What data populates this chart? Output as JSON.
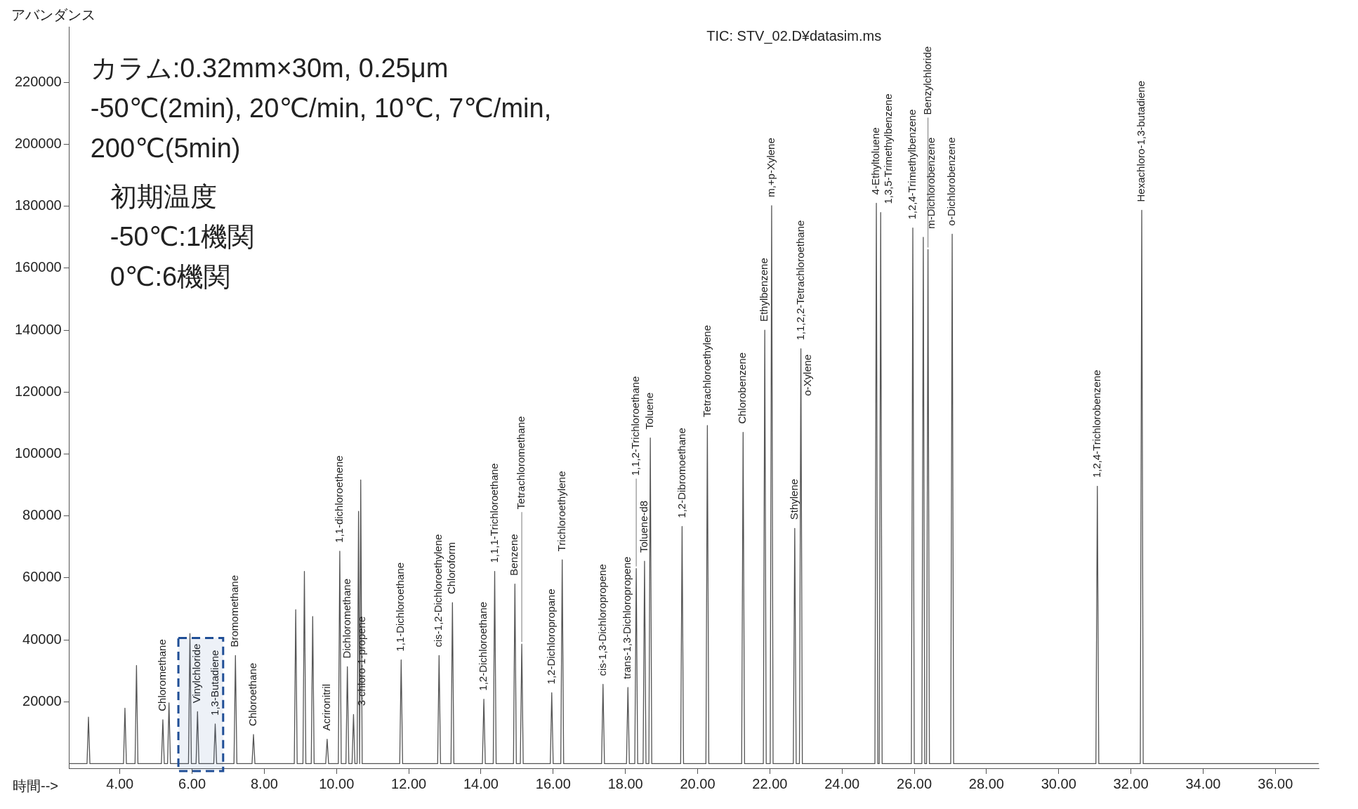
{
  "chart_data": {
    "type": "line",
    "title": "TIC: STV_02.D¥datasim.ms",
    "xlabel": "時間-->",
    "ylabel": "アバンダンス",
    "xlim": [
      2.6,
      37.2
    ],
    "ylim": [
      -1500,
      238000
    ],
    "xticks": [
      {
        "value": 4,
        "label": "4.00"
      },
      {
        "value": 6,
        "label": "6.00"
      },
      {
        "value": 8,
        "label": "8.00"
      },
      {
        "value": 10,
        "label": "10.00"
      },
      {
        "value": 12,
        "label": "12.00"
      },
      {
        "value": 14,
        "label": "14.00"
      },
      {
        "value": 16,
        "label": "16.00"
      },
      {
        "value": 18,
        "label": "18.00"
      },
      {
        "value": 20,
        "label": "20.00"
      },
      {
        "value": 22,
        "label": "22.00"
      },
      {
        "value": 24,
        "label": "24.00"
      },
      {
        "value": 26,
        "label": "26.00"
      },
      {
        "value": 28,
        "label": "28.00"
      },
      {
        "value": 30,
        "label": "30.00"
      },
      {
        "value": 32,
        "label": "32.00"
      },
      {
        "value": 34,
        "label": "34.00"
      },
      {
        "value": 36,
        "label": "36.00"
      }
    ],
    "yticks": [
      20000,
      40000,
      60000,
      80000,
      100000,
      120000,
      140000,
      160000,
      180000,
      200000,
      220000
    ],
    "series": [
      {
        "color": "#555555",
        "x": [
          2.6,
          3.09,
          3.13,
          3.17,
          4.1,
          4.14,
          4.18,
          4.42,
          4.46,
          4.5,
          5.15,
          5.19,
          5.23,
          5.32,
          5.36,
          5.4,
          5.9,
          5.94,
          5.98,
          6.11,
          6.15,
          6.19,
          6.6,
          6.64,
          6.68,
          7.16,
          7.2,
          7.24,
          7.66,
          7.7,
          7.74,
          8.83,
          8.87,
          8.91,
          9.07,
          9.11,
          9.15,
          9.3,
          9.34,
          9.38,
          9.7,
          9.74,
          9.78,
          10.05,
          10.09,
          10.13,
          10.26,
          10.3,
          10.34,
          10.43,
          10.47,
          10.51,
          10.57,
          10.61,
          10.64,
          10.64,
          10.67,
          10.71,
          11.75,
          11.79,
          11.83,
          12.8,
          12.84,
          12.88,
          13.17,
          13.21,
          13.25,
          14.04,
          14.08,
          14.12,
          14.34,
          14.38,
          14.42,
          14.9,
          14.94,
          14.98,
          15.09,
          15.13,
          15.17,
          15.92,
          15.96,
          16.0,
          16.21,
          16.25,
          16.29,
          17.34,
          17.38,
          17.42,
          18.03,
          18.07,
          18.11,
          18.26,
          18.3,
          18.34,
          18.49,
          18.53,
          18.57,
          18.65,
          18.69,
          18.73,
          19.53,
          19.57,
          19.61,
          20.23,
          20.27,
          20.31,
          21.22,
          21.26,
          21.3,
          21.82,
          21.86,
          21.9,
          22.01,
          22.05,
          22.09,
          22.65,
          22.69,
          22.73,
          22.82,
          22.86,
          22.9,
          24.91,
          24.95,
          24.99,
          25.03,
          25.07,
          25.11,
          25.92,
          25.96,
          26.0,
          26.21,
          26.25,
          26.29,
          26.34,
          26.38,
          26.42,
          27.01,
          27.05,
          27.09,
          31.03,
          31.07,
          31.11,
          32.26,
          32.3,
          32.34,
          37.2
        ],
        "values": [
          0,
          0,
          15000,
          0,
          0,
          17900,
          0,
          0,
          31700,
          0,
          0,
          14200,
          0,
          0,
          19600,
          0,
          0,
          42000,
          0,
          0,
          16800,
          0,
          0,
          12800,
          0,
          0,
          34900,
          0,
          0,
          9400,
          0,
          0,
          49700,
          0,
          0,
          62100,
          0,
          0,
          47500,
          0,
          0,
          7900,
          0,
          0,
          68600,
          0,
          0,
          31300,
          0,
          0,
          15900,
          0,
          0,
          81500,
          0,
          0,
          91600,
          0,
          0,
          33500,
          0,
          0,
          34900,
          0,
          0,
          52000,
          0,
          0,
          20800,
          0,
          0,
          62100,
          0,
          0,
          58000,
          0,
          0,
          38600,
          0,
          0,
          22900,
          0,
          0,
          65800,
          0,
          0,
          25600,
          0,
          0,
          24600,
          0,
          0,
          63000,
          0,
          0,
          65400,
          0,
          0,
          105200,
          0,
          0,
          76600,
          0,
          0,
          109200,
          0,
          0,
          107000,
          0,
          0,
          140000,
          0,
          0,
          180200,
          0,
          0,
          76000,
          0,
          0,
          134000,
          0,
          0,
          181000,
          0,
          0,
          178000,
          0,
          0,
          173000,
          0,
          0,
          170000,
          0,
          0,
          166000,
          0,
          0,
          171000,
          0,
          0,
          89600,
          0,
          0,
          178700,
          0,
          0
        ]
      }
    ],
    "bands": [
      {
        "axis": "x",
        "from": 5.62,
        "to": 6.86,
        "color": "#1f4e96"
      }
    ],
    "annotations": [
      "カラム:0.32mm×30m, 0.25μm",
      "-50℃(2min), 20℃/min, 10℃, 7℃/min,",
      "200℃(5min)",
      "初期温度",
      "-50℃:1機関",
      "0℃:6機関",
      {
        "text": "Chloromethane",
        "x": 5.19,
        "y": 14200
      },
      {
        "text": "Vinylchloride",
        "x": 6.15,
        "y": 16800
      },
      {
        "text": "1,3-Butadiene",
        "x": 6.64,
        "y": 12800
      },
      {
        "text": "Bromomethane",
        "x": 7.2,
        "y": 34900
      },
      {
        "text": "Chloroethane",
        "x": 7.7,
        "y": 9400
      },
      {
        "text": "Acrironitril",
        "x": 9.74,
        "y": 7900
      },
      {
        "text": "1,1-dichloroethene",
        "x": 10.09,
        "y": 68600
      },
      {
        "text": "Dichloromethane",
        "x": 10.3,
        "y": 31300
      },
      {
        "text": "3-chloro-1-propene",
        "x": 10.47,
        "y": 15900
      },
      {
        "text": "1,1-Dichloroethane",
        "x": 11.79,
        "y": 33500
      },
      {
        "text": "cis-1,2-Dichloroethylene",
        "x": 12.84,
        "y": 34900
      },
      {
        "text": "Chloroform",
        "x": 13.21,
        "y": 52000
      },
      {
        "text": "1,2-Dichloroethane",
        "x": 14.08,
        "y": 20800
      },
      {
        "text": "1,1,1-Trichloroethane",
        "x": 14.38,
        "y": 62100
      },
      {
        "text": "Benzene",
        "x": 14.94,
        "y": 58000
      },
      {
        "text": "Tetrachloromethane",
        "x": 15.13,
        "y": 38600
      },
      {
        "text": "1,2-Dichloropropane",
        "x": 15.96,
        "y": 22900
      },
      {
        "text": "Trichloroethylene",
        "x": 16.25,
        "y": 65800
      },
      {
        "text": "cis-1,3-Dichloropropene",
        "x": 17.38,
        "y": 25600
      },
      {
        "text": "trans-1,3-Dichloropropene",
        "x": 18.07,
        "y": 24600
      },
      {
        "text": "1,1,2-Trichloroethane",
        "x": 18.3,
        "y": 63000
      },
      {
        "text": "Toluene-d8",
        "x": 18.53,
        "y": 65400
      },
      {
        "text": "Toluene",
        "x": 18.69,
        "y": 105200
      },
      {
        "text": "1,2-Dibromoethane",
        "x": 19.57,
        "y": 76600
      },
      {
        "text": "Tetrachloroethylene",
        "x": 20.27,
        "y": 109200
      },
      {
        "text": "Chlorobenzene",
        "x": 21.26,
        "y": 107000
      },
      {
        "text": "Ethylbenzene",
        "x": 21.86,
        "y": 140000
      },
      {
        "text": "m,+p-Xylene",
        "x": 22.05,
        "y": 180200
      },
      {
        "text": "Sthylene",
        "x": 22.69,
        "y": 76000
      },
      {
        "text": "1,1,2,2-Tetrachloroethane",
        "x": 22.86,
        "y": 134000
      },
      {
        "text": "o-Xylene",
        "x": 22.86,
        "y": 134000
      },
      {
        "text": "4-Ethyltoluene",
        "x": 24.95,
        "y": 181000
      },
      {
        "text": "1,3,5-Trimethylbenzene",
        "x": 25.07,
        "y": 178000
      },
      {
        "text": "1,2,4-Trimethylbenzene",
        "x": 25.96,
        "y": 173000
      },
      {
        "text": "m-Dichlorobenzene",
        "x": 26.25,
        "y": 170000
      },
      {
        "text": "Benzylchloride",
        "x": 26.38,
        "y": 166000
      },
      {
        "text": "o-Dichlorobenzene",
        "x": 27.05,
        "y": 171000
      },
      {
        "text": "1,2,4-Trichlorobenzene",
        "x": 31.07,
        "y": 89600
      },
      {
        "text": "Hexachloro-1,3-butadiene",
        "x": 32.3,
        "y": 178700
      }
    ]
  }
}
